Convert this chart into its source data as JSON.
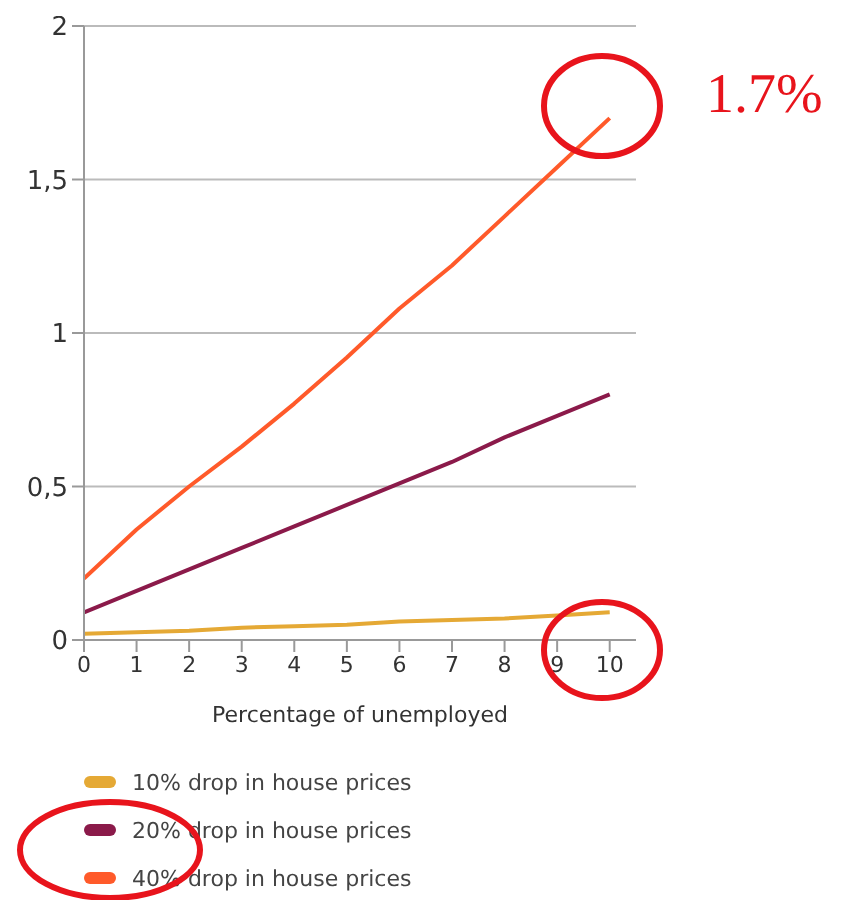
{
  "chart_data": {
    "type": "line",
    "xlabel": "Percentage of unemployed",
    "x": [
      0,
      1,
      2,
      3,
      4,
      5,
      6,
      7,
      8,
      9,
      10
    ],
    "series": [
      {
        "name": "10% drop in house prices",
        "color": "#e5a935",
        "values": [
          0.02,
          0.025,
          0.03,
          0.04,
          0.045,
          0.05,
          0.06,
          0.065,
          0.07,
          0.08,
          0.09
        ]
      },
      {
        "name": "20% drop in house prices",
        "color": "#8b1a4a",
        "values": [
          0.09,
          0.16,
          0.23,
          0.3,
          0.37,
          0.44,
          0.51,
          0.58,
          0.66,
          0.73,
          0.8
        ]
      },
      {
        "name": "40% drop in house prices",
        "color": "#ff5a2a",
        "values": [
          0.2,
          0.36,
          0.5,
          0.63,
          0.77,
          0.92,
          1.08,
          1.22,
          1.38,
          1.54,
          1.7
        ]
      }
    ],
    "xlim": [
      0,
      10.5
    ],
    "xticks": [
      0,
      1,
      2,
      3,
      4,
      5,
      6,
      7,
      8,
      9,
      10
    ],
    "ylim": [
      0,
      2
    ],
    "yticks": [
      0,
      {
        "value": 0.5,
        "label": "0,5"
      },
      1,
      {
        "value": 1.5,
        "label": "1,5"
      },
      2
    ],
    "grid": "y",
    "legend": "bottom",
    "marker": "none",
    "line_style": "solid",
    "annotations": [
      "1.7%"
    ]
  }
}
